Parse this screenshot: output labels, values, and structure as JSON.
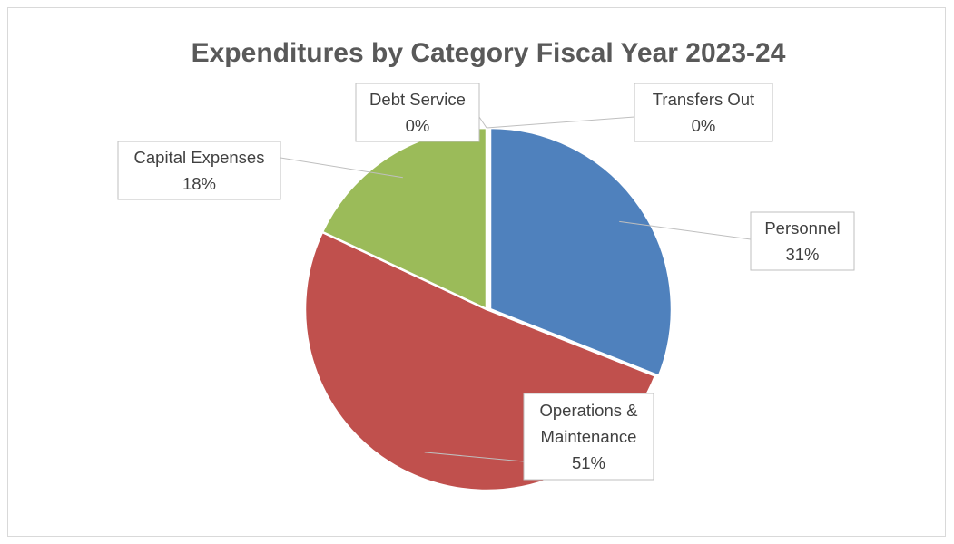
{
  "chart_data": {
    "type": "pie",
    "title": "Expenditures by Category Fiscal Year 2023-24",
    "slices": [
      {
        "name": "Personnel",
        "value": 31,
        "label": "31%",
        "color": "#4F81BD"
      },
      {
        "name": "Operations & Maintenance",
        "value": 51,
        "label": "51%",
        "color": "#C0504D"
      },
      {
        "name": "Capital Expenses",
        "value": 18,
        "label": "18%",
        "color": "#9BBB59"
      },
      {
        "name": "Debt Service",
        "value": 0,
        "label": "0%",
        "color": "#8064A2"
      },
      {
        "name": "Transfers Out",
        "value": 0,
        "label": "0%",
        "color": "#4BACC6"
      }
    ],
    "start_angle_deg": 0,
    "direction": "clockwise",
    "legend": "none",
    "data_labels": "callouts"
  }
}
